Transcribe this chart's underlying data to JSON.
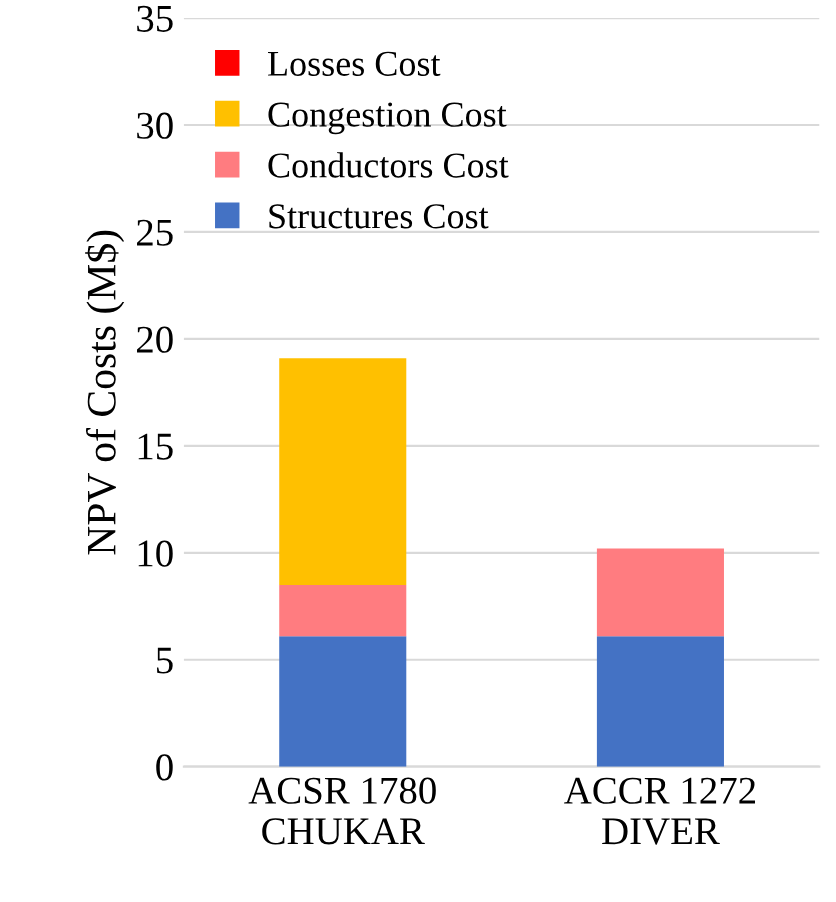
{
  "chart_data": {
    "type": "bar",
    "stacked": true,
    "ylabel": "NPV of Costs (M$)",
    "categories": [
      "ACSR 1780\nCHUKAR",
      "ACCR 1272\nDIVER"
    ],
    "series": [
      {
        "name": "Structures Cost",
        "color": "#4472c4",
        "values": [
          6.1,
          6.1
        ]
      },
      {
        "name": "Conductors Cost",
        "color": "#ff7c80",
        "values": [
          2.4,
          4.1
        ]
      },
      {
        "name": "Congestion Cost",
        "color": "#ffc000",
        "values": [
          10.6,
          0
        ]
      },
      {
        "name": "Losses Cost",
        "color": "#ff0000",
        "values": [
          0,
          0
        ]
      }
    ],
    "ylim": [
      0,
      35
    ],
    "yticks": [
      0,
      5,
      10,
      15,
      20,
      25,
      30,
      35
    ],
    "grid": "y",
    "legend": "top left"
  }
}
